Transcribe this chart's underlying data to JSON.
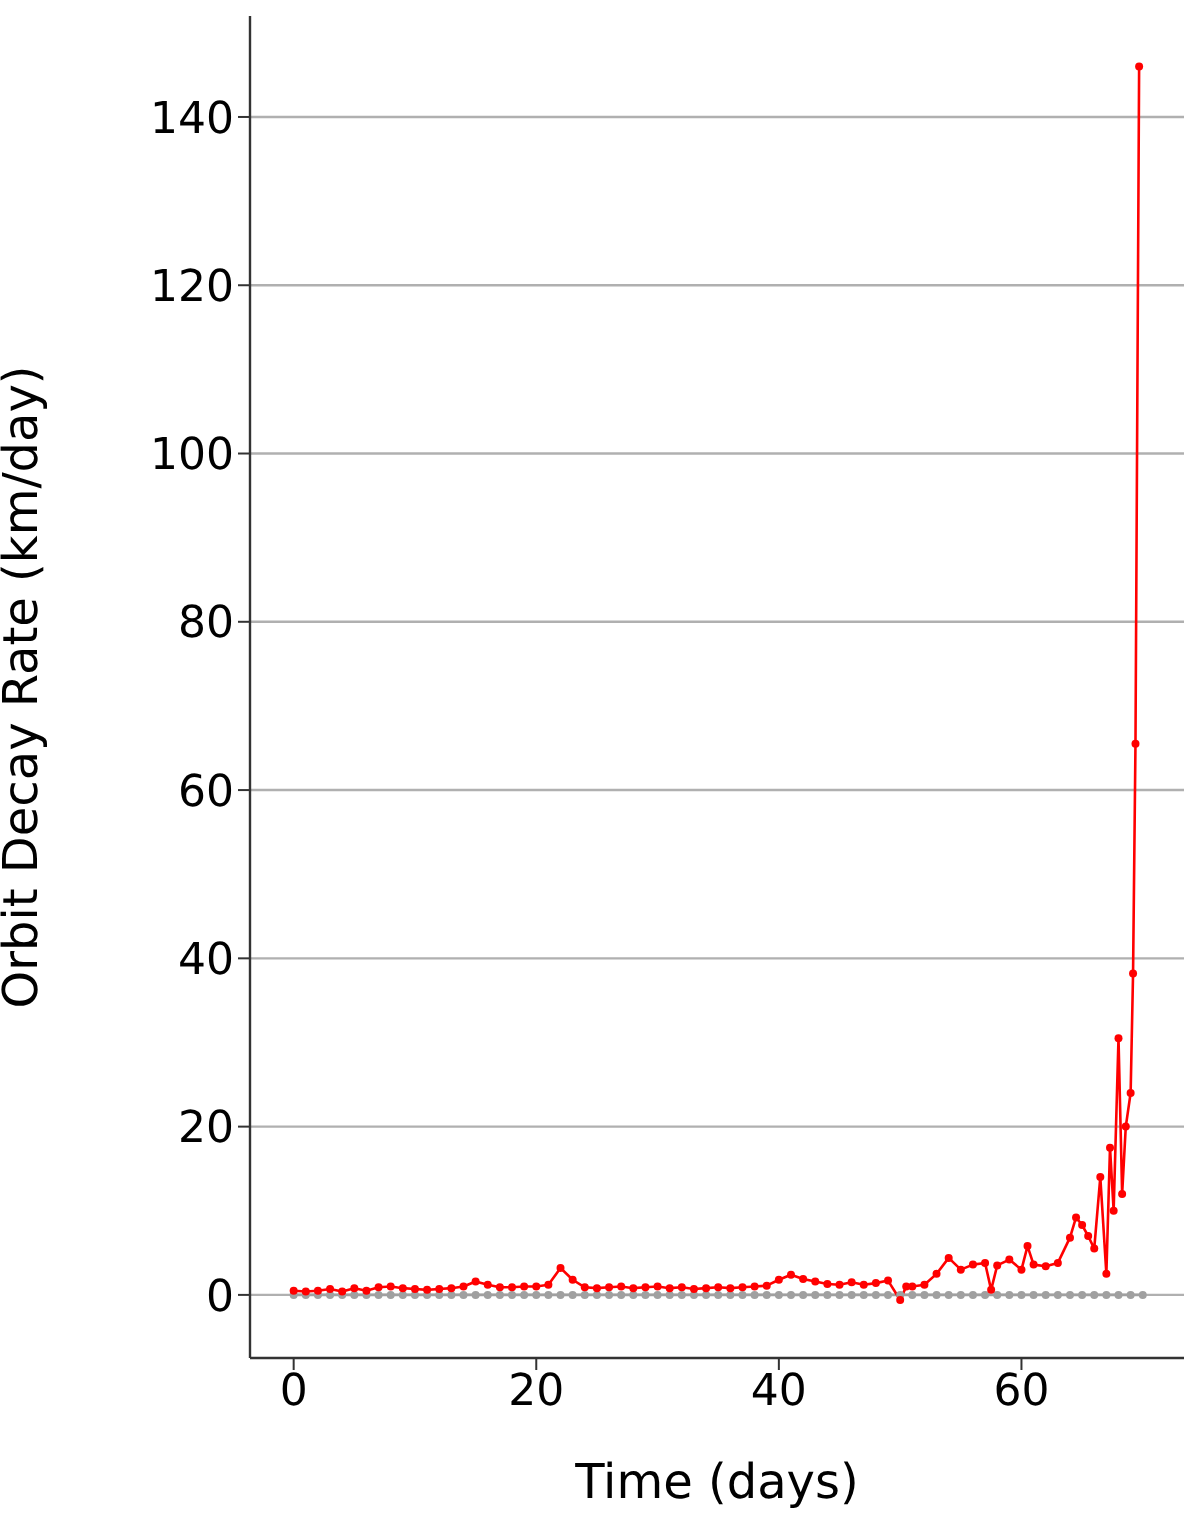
{
  "chart_data": {
    "type": "line",
    "xlabel": "Time (days)",
    "ylabel": "Orbit Decay Rate (km/day)",
    "xlim": [
      -3.6,
      73.4
    ],
    "ylim": [
      -7.5,
      152
    ],
    "xticks": [
      0,
      20,
      40,
      60
    ],
    "yticks": [
      0,
      20,
      40,
      60,
      80,
      100,
      120,
      140
    ],
    "grid": "y",
    "marker": "circle",
    "line_style": "solid",
    "series": [
      {
        "color": "#a0a0a0",
        "x": [
          0,
          1,
          2,
          3,
          4,
          5,
          6,
          7,
          8,
          9,
          10,
          11,
          12,
          13,
          14,
          15,
          16,
          17,
          18,
          19,
          20,
          21,
          22,
          23,
          24,
          25,
          26,
          27,
          28,
          29,
          30,
          31,
          32,
          33,
          34,
          35,
          36,
          37,
          38,
          39,
          40,
          41,
          42,
          43,
          44,
          45,
          46,
          47,
          48,
          49,
          50,
          51,
          52,
          53,
          54,
          55,
          56,
          57,
          58,
          59,
          60,
          61,
          62,
          63,
          64,
          65,
          66,
          67,
          68,
          69,
          70
        ],
        "values": [
          0,
          0,
          0,
          0,
          0,
          0,
          0,
          0,
          0,
          0,
          0,
          0,
          0,
          0,
          0,
          0,
          0,
          0,
          0,
          0,
          0,
          0,
          0,
          0,
          0,
          0,
          0,
          0,
          0,
          0,
          0,
          0,
          0,
          0,
          0,
          0,
          0,
          0,
          0,
          0,
          0,
          0,
          0,
          0,
          0,
          0,
          0,
          0,
          0,
          0,
          0,
          0,
          0,
          0,
          0,
          0,
          0,
          0,
          0,
          0,
          0,
          0,
          0,
          0,
          0,
          0,
          0,
          0,
          0,
          0,
          0
        ]
      },
      {
        "color": "#ff0000",
        "x": [
          0,
          1,
          2,
          3,
          4,
          5,
          6,
          7,
          8,
          9,
          10,
          11,
          12,
          13,
          14,
          15,
          16,
          17,
          18,
          19,
          20,
          21,
          22,
          23,
          24,
          25,
          26,
          27,
          28,
          29,
          30,
          31,
          32,
          33,
          34,
          35,
          36,
          37,
          38,
          39,
          40,
          41,
          42,
          43,
          44,
          45,
          46,
          47,
          48,
          49,
          50,
          50.5,
          51,
          52,
          53,
          54,
          55,
          56,
          57,
          57.5,
          58,
          59,
          60,
          60.5,
          61,
          62,
          63,
          64,
          64.5,
          65,
          65.5,
          66,
          66.5,
          67,
          67.3,
          67.6,
          68,
          68.3,
          68.6,
          69,
          69.2,
          69.4,
          69.7
        ],
        "values": [
          0.5,
          0.4,
          0.5,
          0.7,
          0.4,
          0.8,
          0.5,
          0.9,
          1.0,
          0.8,
          0.7,
          0.6,
          0.7,
          0.8,
          1.0,
          1.6,
          1.2,
          0.9,
          0.9,
          1.0,
          1.0,
          1.2,
          3.2,
          1.8,
          0.9,
          0.8,
          0.9,
          1.0,
          0.8,
          0.9,
          1.0,
          0.8,
          0.9,
          0.7,
          0.8,
          0.9,
          0.8,
          0.9,
          1.0,
          1.1,
          1.8,
          2.4,
          1.9,
          1.6,
          1.3,
          1.2,
          1.5,
          1.2,
          1.4,
          1.7,
          -0.6,
          1.0,
          1.0,
          1.2,
          2.5,
          4.4,
          3.0,
          3.6,
          3.8,
          0.6,
          3.5,
          4.2,
          3.0,
          5.8,
          3.6,
          3.4,
          3.8,
          6.8,
          9.2,
          8.3,
          7,
          5.5,
          14,
          2.5,
          17.5,
          10,
          30.5,
          12,
          20,
          24,
          38.2,
          65.5,
          146
        ]
      }
    ]
  }
}
